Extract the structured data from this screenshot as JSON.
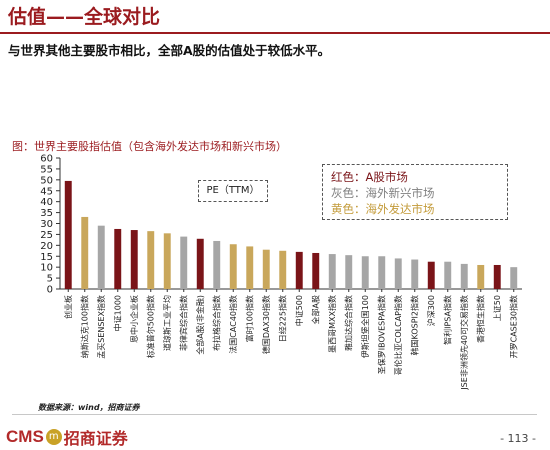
{
  "slide": {
    "title": "估值——全球对比",
    "subtitle": "与世界其他主要股市相比，全部A股的估值处于较低水平。",
    "chart_caption": "图：世界主要股指估值（包含海外发达市场和新兴市场）",
    "source": "数据来源：wind，招商证券",
    "logo_text": "CMS",
    "logo_mark": "m",
    "logo_name": "招商证券",
    "page_number": "- 113 -"
  },
  "chart_data": {
    "type": "bar",
    "title": "",
    "xlabel": "",
    "ylabel": "",
    "ylim": [
      0,
      60
    ],
    "yticks": [
      0,
      5,
      10,
      15,
      20,
      25,
      30,
      35,
      40,
      45,
      50,
      55,
      60
    ],
    "annotation": "PE（TTM）",
    "legend": [
      {
        "label": "红色：A股市场",
        "color": "#7a1418"
      },
      {
        "label": "灰色：海外新兴市场",
        "color": "#7f7f7f"
      },
      {
        "label": "黄色：海外发达市场",
        "color": "#c39b3a"
      }
    ],
    "colors": {
      "A": "#7a1418",
      "E": "#a6a6a6",
      "D": "#c9a75b"
    },
    "categories": [
      "创业板",
      "纳斯达克100指数",
      "孟买SENSEX指数",
      "中证1000",
      "恩中小企业板",
      "标准普尔500指数",
      "道琼斯工业平均",
      "菲律宾综合指数",
      "全部A股(非金融)",
      "布拉格综合指数",
      "法国CAC40指数",
      "富时100指数",
      "德国DAX30指数",
      "日经225指数",
      "中证500",
      "全部A股",
      "墨西哥MXX指数",
      "雅加达综合指数",
      "伊斯坦堡全国100",
      "圣保罗IBOVESPA指数",
      "哥伦比亚COLCAP指数",
      "韩国KOSPI2指数",
      "沪深300",
      "智利IPSA指数",
      "JSE非洲领先40可交易指数",
      "香港恒生指数",
      "上证50",
      "开罗CASE30指数"
    ],
    "values": [
      49.5,
      33.0,
      29.0,
      27.5,
      27.0,
      26.5,
      25.5,
      24.0,
      23.0,
      22.0,
      20.5,
      19.5,
      18.0,
      17.5,
      17.0,
      16.5,
      16.0,
      15.5,
      15.0,
      15.0,
      14.0,
      13.5,
      12.5,
      12.5,
      11.5,
      11.0,
      11.0,
      10.0
    ],
    "groups": [
      "A",
      "D",
      "E",
      "A",
      "A",
      "D",
      "D",
      "E",
      "A",
      "E",
      "D",
      "D",
      "D",
      "D",
      "A",
      "A",
      "E",
      "E",
      "E",
      "E",
      "E",
      "E",
      "A",
      "E",
      "E",
      "D",
      "A",
      "E"
    ]
  }
}
